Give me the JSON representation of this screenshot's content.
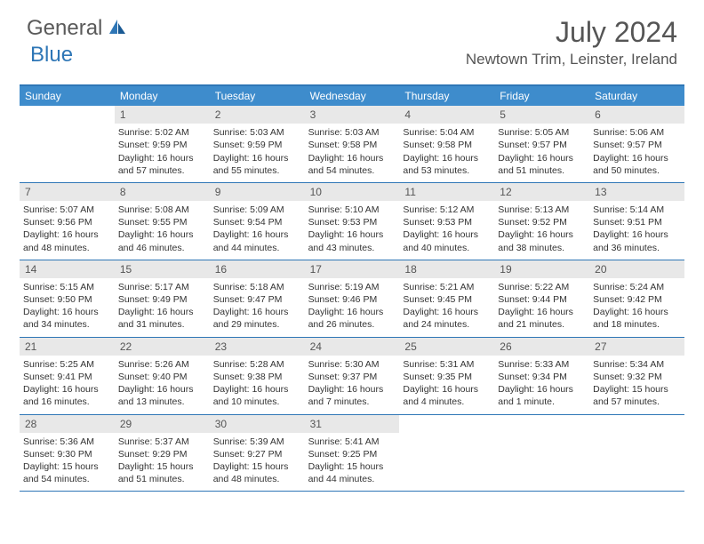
{
  "logo": {
    "general": "General",
    "blue": "Blue"
  },
  "title": "July 2024",
  "location": "Newtown Trim, Leinster, Ireland",
  "colors": {
    "header_bg": "#3e8ccc",
    "border": "#2e76b6",
    "daynum_bg": "#e8e8e8",
    "text": "#333333"
  },
  "days_of_week": [
    "Sunday",
    "Monday",
    "Tuesday",
    "Wednesday",
    "Thursday",
    "Friday",
    "Saturday"
  ],
  "weeks": [
    [
      {
        "n": "",
        "sr": "",
        "ss": "",
        "dl": ""
      },
      {
        "n": "1",
        "sr": "Sunrise: 5:02 AM",
        "ss": "Sunset: 9:59 PM",
        "dl": "Daylight: 16 hours and 57 minutes."
      },
      {
        "n": "2",
        "sr": "Sunrise: 5:03 AM",
        "ss": "Sunset: 9:59 PM",
        "dl": "Daylight: 16 hours and 55 minutes."
      },
      {
        "n": "3",
        "sr": "Sunrise: 5:03 AM",
        "ss": "Sunset: 9:58 PM",
        "dl": "Daylight: 16 hours and 54 minutes."
      },
      {
        "n": "4",
        "sr": "Sunrise: 5:04 AM",
        "ss": "Sunset: 9:58 PM",
        "dl": "Daylight: 16 hours and 53 minutes."
      },
      {
        "n": "5",
        "sr": "Sunrise: 5:05 AM",
        "ss": "Sunset: 9:57 PM",
        "dl": "Daylight: 16 hours and 51 minutes."
      },
      {
        "n": "6",
        "sr": "Sunrise: 5:06 AM",
        "ss": "Sunset: 9:57 PM",
        "dl": "Daylight: 16 hours and 50 minutes."
      }
    ],
    [
      {
        "n": "7",
        "sr": "Sunrise: 5:07 AM",
        "ss": "Sunset: 9:56 PM",
        "dl": "Daylight: 16 hours and 48 minutes."
      },
      {
        "n": "8",
        "sr": "Sunrise: 5:08 AM",
        "ss": "Sunset: 9:55 PM",
        "dl": "Daylight: 16 hours and 46 minutes."
      },
      {
        "n": "9",
        "sr": "Sunrise: 5:09 AM",
        "ss": "Sunset: 9:54 PM",
        "dl": "Daylight: 16 hours and 44 minutes."
      },
      {
        "n": "10",
        "sr": "Sunrise: 5:10 AM",
        "ss": "Sunset: 9:53 PM",
        "dl": "Daylight: 16 hours and 43 minutes."
      },
      {
        "n": "11",
        "sr": "Sunrise: 5:12 AM",
        "ss": "Sunset: 9:53 PM",
        "dl": "Daylight: 16 hours and 40 minutes."
      },
      {
        "n": "12",
        "sr": "Sunrise: 5:13 AM",
        "ss": "Sunset: 9:52 PM",
        "dl": "Daylight: 16 hours and 38 minutes."
      },
      {
        "n": "13",
        "sr": "Sunrise: 5:14 AM",
        "ss": "Sunset: 9:51 PM",
        "dl": "Daylight: 16 hours and 36 minutes."
      }
    ],
    [
      {
        "n": "14",
        "sr": "Sunrise: 5:15 AM",
        "ss": "Sunset: 9:50 PM",
        "dl": "Daylight: 16 hours and 34 minutes."
      },
      {
        "n": "15",
        "sr": "Sunrise: 5:17 AM",
        "ss": "Sunset: 9:49 PM",
        "dl": "Daylight: 16 hours and 31 minutes."
      },
      {
        "n": "16",
        "sr": "Sunrise: 5:18 AM",
        "ss": "Sunset: 9:47 PM",
        "dl": "Daylight: 16 hours and 29 minutes."
      },
      {
        "n": "17",
        "sr": "Sunrise: 5:19 AM",
        "ss": "Sunset: 9:46 PM",
        "dl": "Daylight: 16 hours and 26 minutes."
      },
      {
        "n": "18",
        "sr": "Sunrise: 5:21 AM",
        "ss": "Sunset: 9:45 PM",
        "dl": "Daylight: 16 hours and 24 minutes."
      },
      {
        "n": "19",
        "sr": "Sunrise: 5:22 AM",
        "ss": "Sunset: 9:44 PM",
        "dl": "Daylight: 16 hours and 21 minutes."
      },
      {
        "n": "20",
        "sr": "Sunrise: 5:24 AM",
        "ss": "Sunset: 9:42 PM",
        "dl": "Daylight: 16 hours and 18 minutes."
      }
    ],
    [
      {
        "n": "21",
        "sr": "Sunrise: 5:25 AM",
        "ss": "Sunset: 9:41 PM",
        "dl": "Daylight: 16 hours and 16 minutes."
      },
      {
        "n": "22",
        "sr": "Sunrise: 5:26 AM",
        "ss": "Sunset: 9:40 PM",
        "dl": "Daylight: 16 hours and 13 minutes."
      },
      {
        "n": "23",
        "sr": "Sunrise: 5:28 AM",
        "ss": "Sunset: 9:38 PM",
        "dl": "Daylight: 16 hours and 10 minutes."
      },
      {
        "n": "24",
        "sr": "Sunrise: 5:30 AM",
        "ss": "Sunset: 9:37 PM",
        "dl": "Daylight: 16 hours and 7 minutes."
      },
      {
        "n": "25",
        "sr": "Sunrise: 5:31 AM",
        "ss": "Sunset: 9:35 PM",
        "dl": "Daylight: 16 hours and 4 minutes."
      },
      {
        "n": "26",
        "sr": "Sunrise: 5:33 AM",
        "ss": "Sunset: 9:34 PM",
        "dl": "Daylight: 16 hours and 1 minute."
      },
      {
        "n": "27",
        "sr": "Sunrise: 5:34 AM",
        "ss": "Sunset: 9:32 PM",
        "dl": "Daylight: 15 hours and 57 minutes."
      }
    ],
    [
      {
        "n": "28",
        "sr": "Sunrise: 5:36 AM",
        "ss": "Sunset: 9:30 PM",
        "dl": "Daylight: 15 hours and 54 minutes."
      },
      {
        "n": "29",
        "sr": "Sunrise: 5:37 AM",
        "ss": "Sunset: 9:29 PM",
        "dl": "Daylight: 15 hours and 51 minutes."
      },
      {
        "n": "30",
        "sr": "Sunrise: 5:39 AM",
        "ss": "Sunset: 9:27 PM",
        "dl": "Daylight: 15 hours and 48 minutes."
      },
      {
        "n": "31",
        "sr": "Sunrise: 5:41 AM",
        "ss": "Sunset: 9:25 PM",
        "dl": "Daylight: 15 hours and 44 minutes."
      },
      {
        "n": "",
        "sr": "",
        "ss": "",
        "dl": ""
      },
      {
        "n": "",
        "sr": "",
        "ss": "",
        "dl": ""
      },
      {
        "n": "",
        "sr": "",
        "ss": "",
        "dl": ""
      }
    ]
  ]
}
